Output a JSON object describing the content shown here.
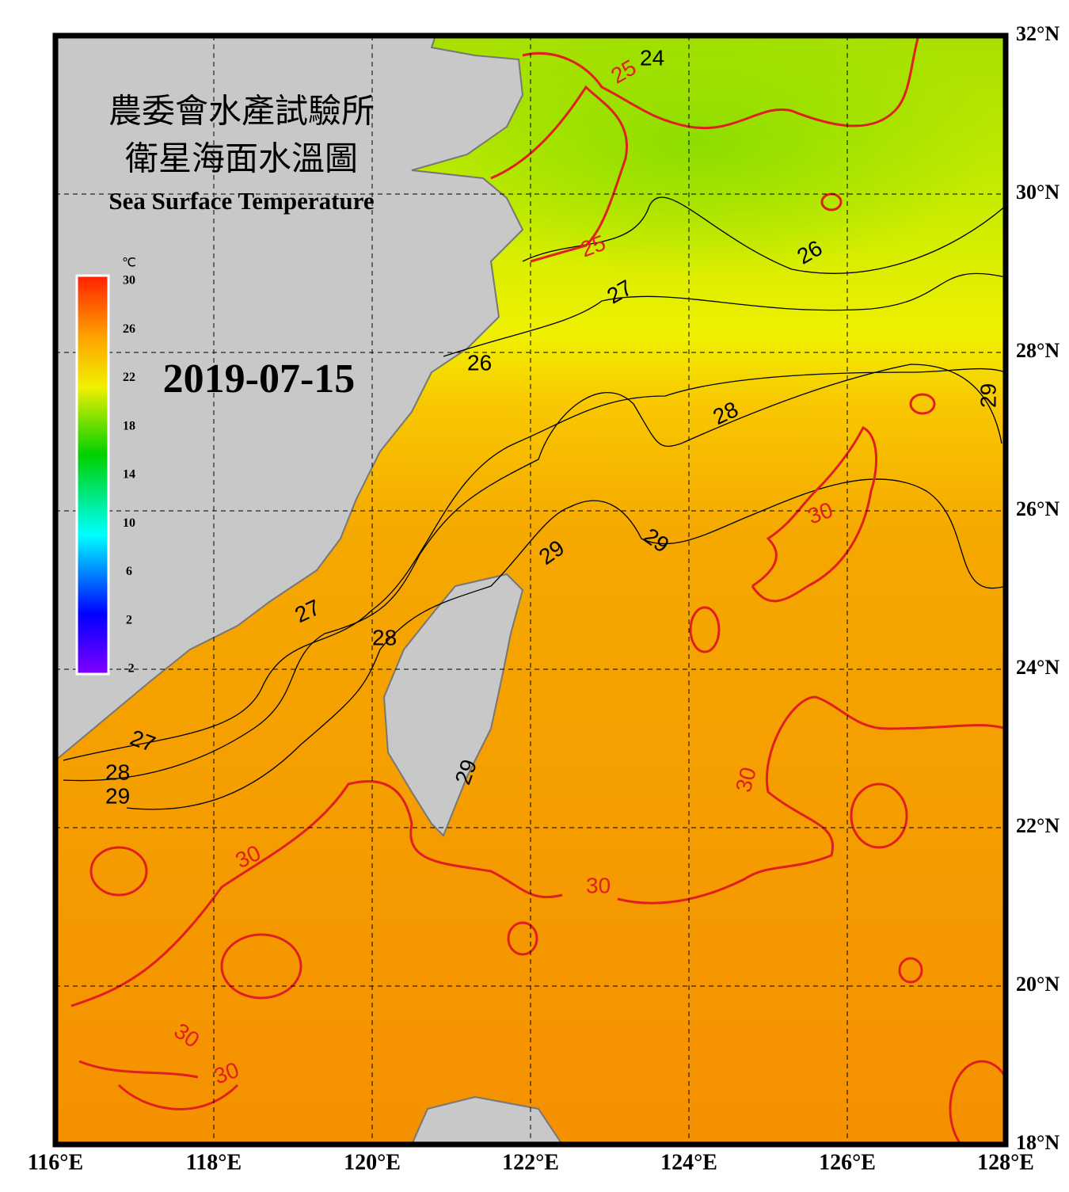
{
  "header": {
    "title_lines": [
      "農委會水產試驗所",
      "衛星海面水溫圖"
    ],
    "subtitle": "Sea Surface Temperature",
    "date": "2019-07-15"
  },
  "colorbar": {
    "unit": "℃",
    "lim": [
      -2,
      30
    ],
    "ticks": [
      30,
      26,
      22,
      18,
      14,
      10,
      6,
      2,
      -2
    ]
  },
  "axes": {
    "xlim": [
      116,
      128
    ],
    "ylim": [
      18,
      32
    ],
    "xticks": [
      {
        "value": 116,
        "label": "116°E"
      },
      {
        "value": 118,
        "label": "118°E"
      },
      {
        "value": 120,
        "label": "120°E"
      },
      {
        "value": 122,
        "label": "122°E"
      },
      {
        "value": 124,
        "label": "124°E"
      },
      {
        "value": 126,
        "label": "126°E"
      },
      {
        "value": 128,
        "label": "128°E"
      }
    ],
    "yticks": [
      {
        "value": 18,
        "label": "18°N"
      },
      {
        "value": 20,
        "label": "20°N"
      },
      {
        "value": 22,
        "label": "22°N"
      },
      {
        "value": 24,
        "label": "24°N"
      },
      {
        "value": 26,
        "label": "26°N"
      },
      {
        "value": 28,
        "label": "28°N"
      },
      {
        "value": 30,
        "label": "30°N"
      },
      {
        "value": 32,
        "label": "32°N"
      }
    ]
  },
  "contour_labels": [
    "24",
    "25",
    "25",
    "26",
    "26",
    "27",
    "27",
    "27",
    "28",
    "28",
    "28",
    "29",
    "29",
    "29",
    "29",
    "29",
    "30",
    "30",
    "30",
    "30",
    "30",
    "30"
  ]
}
